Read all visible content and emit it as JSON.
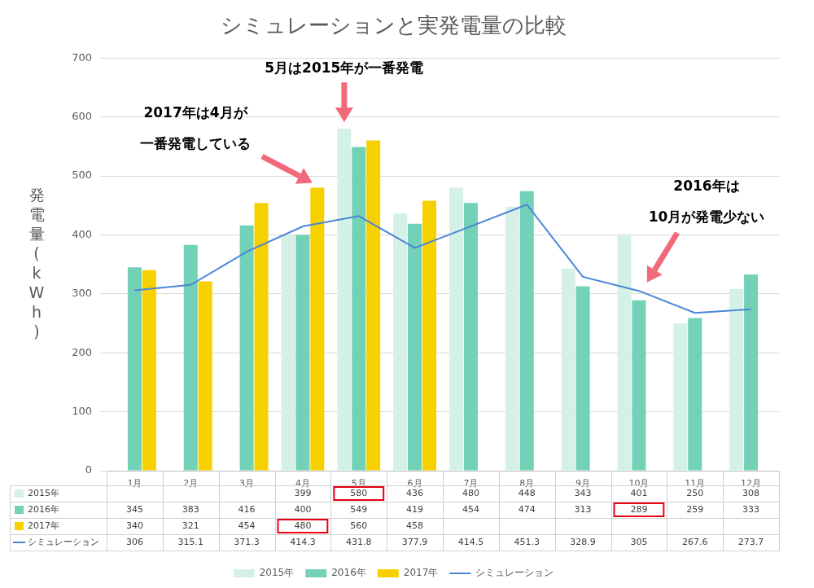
{
  "chart_data": {
    "type": "bar",
    "title": "シミュレーションと実発電量の比較",
    "y_label": "発電量(kWh)",
    "categories": [
      "1月",
      "2月",
      "3月",
      "4月",
      "5月",
      "6月",
      "7月",
      "8月",
      "9月",
      "10月",
      "11月",
      "12月"
    ],
    "series": [
      {
        "name": "2015年",
        "color": "#d5f0e7",
        "values": [
          null,
          null,
          null,
          399,
          580,
          436,
          480,
          448,
          343,
          401,
          250,
          308
        ]
      },
      {
        "name": "2016年",
        "color": "#72d1b6",
        "values": [
          345,
          383,
          416,
          400,
          549,
          419,
          454,
          474,
          313,
          289,
          259,
          333
        ]
      },
      {
        "name": "2017年",
        "color": "#f7d000",
        "values": [
          340,
          321,
          454,
          480,
          560,
          458,
          null,
          null,
          null,
          null,
          null,
          null
        ]
      },
      {
        "name": "シミュレーション",
        "color": "#4a86d8",
        "type": "line",
        "values": [
          306,
          315.1,
          371.3,
          414.3,
          431.8,
          377.9,
          414.5,
          451.3,
          328.9,
          305,
          267.6,
          273.7
        ]
      }
    ],
    "ylim": [
      0,
      700
    ],
    "yticks": [
      0,
      100,
      200,
      300,
      400,
      500,
      600,
      700
    ],
    "grid": true,
    "legend": "bottom",
    "annotations": [
      {
        "lines": [
          "5月は2015年が一番発電"
        ],
        "category": "5月",
        "series": "2015年"
      },
      {
        "lines": [
          "2017年は4月が",
          "一番発電している"
        ],
        "category": "4月",
        "series": "2017年"
      },
      {
        "lines": [
          "2016年は",
          "10月が発電少ない"
        ],
        "category": "10月",
        "series": "2016年"
      }
    ]
  }
}
